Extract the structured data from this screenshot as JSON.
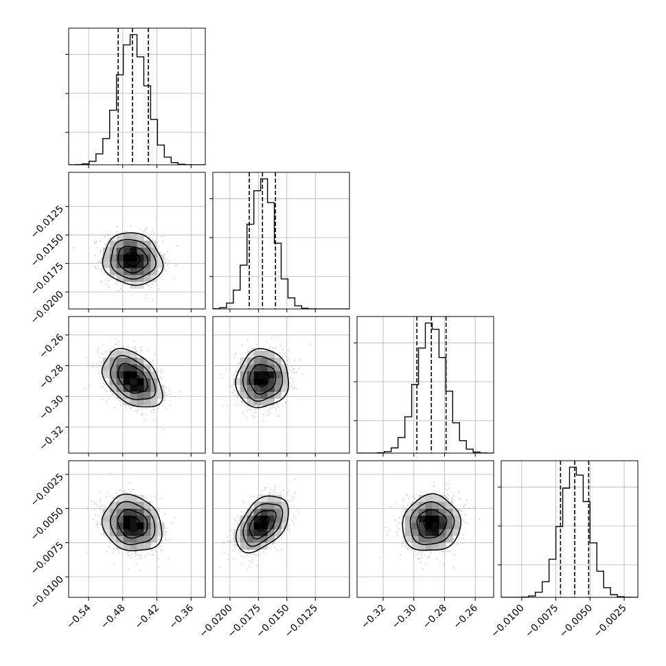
{
  "chart_data": {
    "type": "corner",
    "grid": true,
    "parameters": [
      {
        "range": [
          -0.575,
          -0.335
        ],
        "ticks": [
          -0.54,
          -0.48,
          -0.42,
          -0.36
        ],
        "tick_labels": [
          "−0.54",
          "−0.48",
          "−0.42",
          "−0.36"
        ],
        "median": -0.463,
        "q16": -0.488,
        "q84": -0.435,
        "sigma": 0.026
      },
      {
        "range": [
          -0.0215,
          -0.0095
        ],
        "ticks": [
          -0.02,
          -0.0175,
          -0.015,
          -0.0125
        ],
        "tick_labels": [
          "−0.0200",
          "−0.0175",
          "−0.0150",
          "−0.0125"
        ],
        "median": -0.01714,
        "q16": -0.0183,
        "q84": -0.016,
        "sigma": 0.00115
      },
      {
        "range": [
          -0.337,
          -0.248
        ],
        "ticks": [
          -0.32,
          -0.3,
          -0.28,
          -0.26
        ],
        "tick_labels": [
          "−0.32",
          "−0.30",
          "−0.28",
          "−0.26"
        ],
        "median": -0.2886,
        "q16": -0.298,
        "q84": -0.279,
        "sigma": 0.0095
      },
      {
        "range": [
          -0.0115,
          -0.0015
        ],
        "ticks": [
          -0.01,
          -0.0075,
          -0.005,
          -0.0025
        ],
        "tick_labels": [
          "−0.0100",
          "−0.0075",
          "−0.0050",
          "−0.0025"
        ],
        "median": -0.00612,
        "q16": -0.00716,
        "q84": -0.0051,
        "sigma": 0.00103
      }
    ],
    "correlations": [
      {
        "row": 1,
        "col": 0,
        "rho": -0.1
      },
      {
        "row": 2,
        "col": 0,
        "rho": -0.4
      },
      {
        "row": 2,
        "col": 1,
        "rho": 0.05
      },
      {
        "row": 3,
        "col": 0,
        "rho": -0.15
      },
      {
        "row": 3,
        "col": 1,
        "rho": 0.45
      },
      {
        "row": 3,
        "col": 2,
        "rho": 0.05
      }
    ],
    "histogram_bins": 20,
    "contour_levels_sigma": [
      0.5,
      1.0,
      1.5,
      2.0
    ]
  }
}
